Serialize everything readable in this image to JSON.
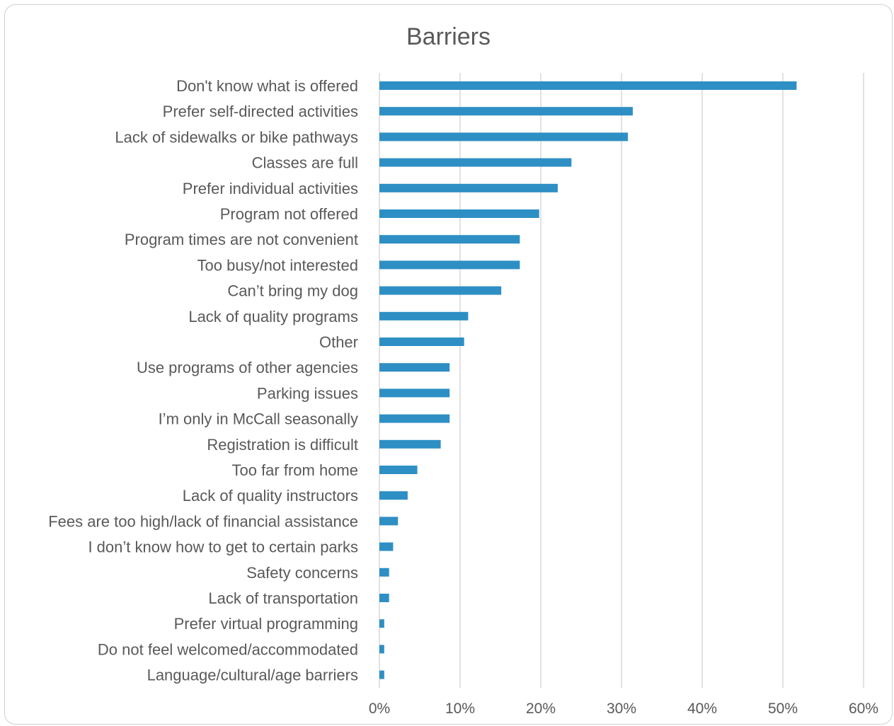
{
  "chart_data": {
    "type": "bar",
    "orientation": "horizontal",
    "title": "Barriers",
    "xlabel": "",
    "ylabel": "",
    "xlim": [
      0,
      60
    ],
    "x_ticks": [
      "0%",
      "10%",
      "20%",
      "30%",
      "40%",
      "50%",
      "60%"
    ],
    "grid": true,
    "legend": "none",
    "bar_color": "#2e8fc4",
    "categories": [
      "Don't know what is offered",
      "Prefer self-directed activities",
      "Lack of sidewalks or bike pathways",
      "Classes are full",
      "Prefer individual activities",
      "Program not offered",
      "Program times are not convenient",
      "Too busy/not interested",
      "Can’t bring my dog",
      "Lack of quality programs",
      "Other",
      "Use programs of other agencies",
      "Parking issues",
      "I’m only in McCall seasonally",
      "Registration is difficult",
      "Too far from home",
      "Lack of quality instructors",
      "Fees are too high/lack of financial assistance",
      "I don’t know how to get to certain parks",
      "Safety concerns",
      "Lack of transportation",
      "Prefer virtual programming",
      "Do not feel welcomed/accommodated",
      "Language/cultural/age barriers"
    ],
    "values": [
      51.7,
      31.4,
      30.8,
      23.8,
      22.1,
      19.8,
      17.4,
      17.4,
      15.1,
      11.0,
      10.5,
      8.7,
      8.7,
      8.7,
      7.6,
      4.7,
      3.5,
      2.3,
      1.7,
      1.2,
      1.2,
      0.6,
      0.6,
      0.6
    ]
  }
}
